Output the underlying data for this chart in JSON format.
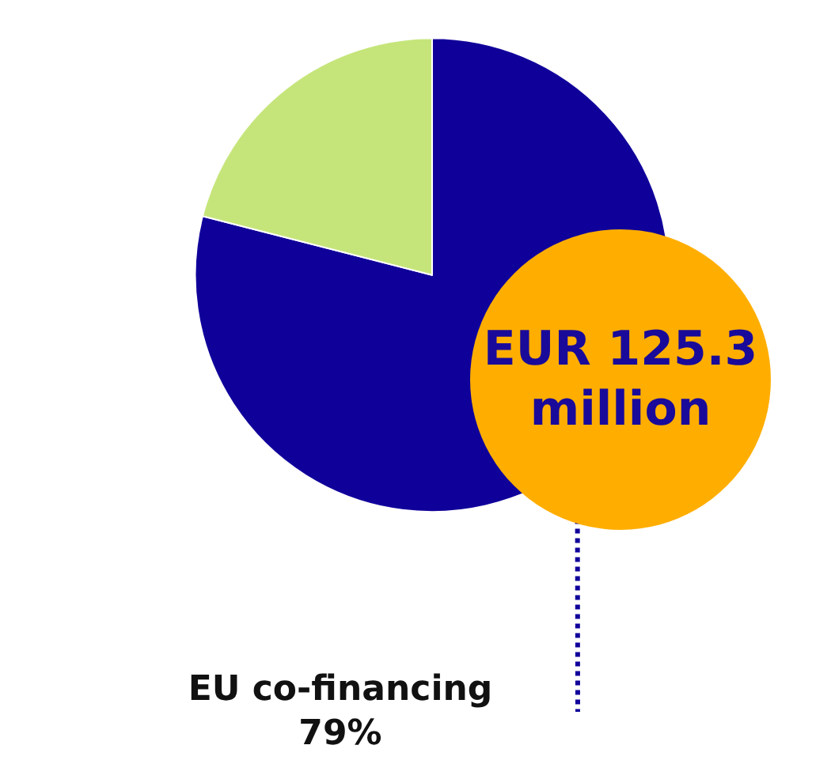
{
  "chart_data": {
    "type": "pie",
    "categories": [
      "EU co-financing",
      null
    ],
    "values": [
      79,
      21
    ],
    "colors": [
      "#10009a",
      "#c5e57a"
    ],
    "value_labels": [
      "79%",
      null
    ],
    "annotations": [
      "EUR 125.3 million"
    ],
    "legend": false
  }
}
